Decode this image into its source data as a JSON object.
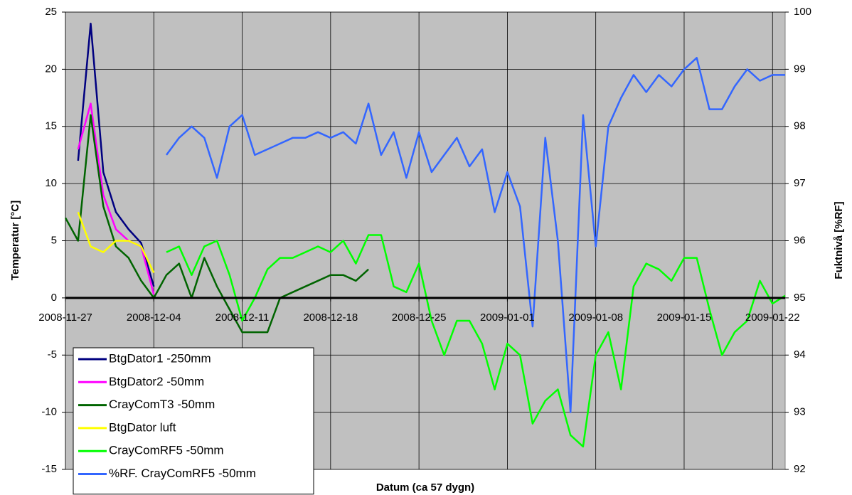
{
  "chart_data": {
    "type": "line",
    "x_label": "Datum (ca 57 dygn)",
    "y_label": "Temperatur [°C]",
    "y2_label": "Fuktnivå [%RF]",
    "x": [
      "2008-11-27",
      "2008-11-28",
      "2008-11-29",
      "2008-11-30",
      "2008-12-01",
      "2008-12-02",
      "2008-12-03",
      "2008-12-04",
      "2008-12-05",
      "2008-12-06",
      "2008-12-07",
      "2008-12-08",
      "2008-12-09",
      "2008-12-10",
      "2008-12-11",
      "2008-12-12",
      "2008-12-13",
      "2008-12-14",
      "2008-12-15",
      "2008-12-16",
      "2008-12-17",
      "2008-12-18",
      "2008-12-19",
      "2008-12-20",
      "2008-12-21",
      "2008-12-22",
      "2008-12-23",
      "2008-12-24",
      "2008-12-25",
      "2008-12-26",
      "2008-12-27",
      "2008-12-28",
      "2008-12-29",
      "2008-12-30",
      "2008-12-31",
      "2009-01-01",
      "2009-01-02",
      "2009-01-03",
      "2009-01-04",
      "2009-01-05",
      "2009-01-06",
      "2009-01-07",
      "2009-01-08",
      "2009-01-09",
      "2009-01-10",
      "2009-01-11",
      "2009-01-12",
      "2009-01-13",
      "2009-01-14",
      "2009-01-15",
      "2009-01-16",
      "2009-01-17",
      "2009-01-18",
      "2009-01-19",
      "2009-01-20",
      "2009-01-21",
      "2009-01-22",
      "2009-01-23"
    ],
    "xlim": [
      "2008-11-27",
      "2009-01-23"
    ],
    "xticks": [
      "2008-11-27",
      "2008-12-04",
      "2008-12-11",
      "2008-12-18",
      "2008-12-25",
      "2009-01-01",
      "2009-01-08",
      "2009-01-15",
      "2009-01-22"
    ],
    "ylim": [
      -15,
      25
    ],
    "yticks": [
      -15,
      -10,
      -5,
      0,
      5,
      10,
      15,
      20,
      25
    ],
    "y2lim": [
      92,
      100
    ],
    "y2ticks": [
      92,
      93,
      94,
      95,
      96,
      97,
      98,
      99,
      100
    ],
    "grid": true,
    "legend": "lower left",
    "series": [
      {
        "name": "BtgDator1 -250mm",
        "color": "#000080",
        "values": [
          null,
          12,
          24,
          11,
          7.5,
          6,
          4.8,
          1,
          null,
          null,
          null,
          null,
          null,
          null,
          null,
          null,
          null,
          null,
          null,
          null,
          null,
          null,
          null,
          null,
          null,
          null,
          null,
          null,
          null,
          null,
          null,
          null,
          null,
          null,
          null,
          null,
          null,
          null,
          null,
          null,
          null,
          null,
          null,
          null,
          null,
          null,
          null,
          null,
          null,
          null,
          null,
          null,
          null,
          null,
          null,
          null,
          null,
          null
        ]
      },
      {
        "name": "BtgDator2 -50mm",
        "color": "#ff00ff",
        "values": [
          null,
          13,
          17,
          9,
          6,
          5,
          4.5,
          0.3,
          null,
          null,
          null,
          null,
          null,
          null,
          null,
          null,
          null,
          null,
          null,
          null,
          null,
          null,
          null,
          null,
          null,
          null,
          null,
          null,
          null,
          null,
          null,
          null,
          null,
          null,
          null,
          null,
          null,
          null,
          null,
          null,
          null,
          null,
          null,
          null,
          null,
          null,
          null,
          null,
          null,
          null,
          null,
          null,
          null,
          null,
          null,
          null,
          null,
          null
        ]
      },
      {
        "name": "CrayComT3 -50mm",
        "color": "#006400",
        "values": [
          7,
          5,
          16,
          8,
          4.5,
          3.5,
          1.5,
          0,
          2,
          3,
          0,
          3.5,
          1,
          -1,
          -3,
          -3,
          -3,
          0,
          0.5,
          1,
          1.5,
          2,
          2,
          1.5,
          2.5,
          null,
          null,
          null,
          null,
          null,
          null,
          null,
          null,
          null,
          null,
          null,
          null,
          null,
          null,
          null,
          null,
          null,
          null,
          null,
          null,
          null,
          null,
          null,
          null,
          null,
          null,
          null,
          null,
          null,
          null,
          null,
          null,
          null
        ]
      },
      {
        "name": "BtgDator luft",
        "color": "#ffff00",
        "values": [
          null,
          7.5,
          4.5,
          4,
          5,
          5,
          4.5,
          2.2,
          null,
          null,
          null,
          null,
          null,
          null,
          null,
          null,
          null,
          null,
          null,
          null,
          null,
          null,
          null,
          null,
          null,
          null,
          null,
          null,
          null,
          null,
          null,
          null,
          null,
          null,
          null,
          null,
          null,
          null,
          null,
          null,
          null,
          null,
          null,
          null,
          null,
          null,
          null,
          null,
          null,
          null,
          null,
          null,
          null,
          null,
          null,
          null,
          null,
          null
        ]
      },
      {
        "name": "CrayComRF5 -50mm",
        "color": "#00ff00",
        "values": [
          null,
          null,
          null,
          null,
          null,
          null,
          null,
          null,
          4,
          4.5,
          2,
          4.5,
          5,
          2,
          -2,
          0,
          2.5,
          3.5,
          3.5,
          4,
          4.5,
          4,
          5,
          3,
          5.5,
          5.5,
          1,
          0.5,
          3,
          -2,
          -5,
          -2,
          -2,
          -4,
          -8,
          -4,
          -5,
          -11,
          -9,
          -8,
          -12,
          -13,
          -5,
          -3,
          -8,
          1,
          3,
          2.5,
          1.5,
          3.5,
          3.5,
          -1,
          -5,
          -3,
          -2,
          1.5,
          -0.5,
          0.2
        ]
      },
      {
        "name": "%RF. CrayComRF5 -50mm",
        "color": "#3366ff",
        "axis": "y2",
        "values": [
          null,
          null,
          null,
          null,
          null,
          null,
          null,
          null,
          97.5,
          97.8,
          98,
          97.8,
          97.1,
          98,
          98.2,
          97.5,
          97.6,
          97.7,
          97.8,
          97.8,
          97.9,
          97.8,
          97.9,
          97.7,
          98.4,
          97.5,
          97.9,
          97.1,
          97.9,
          97.2,
          97.5,
          97.8,
          97.3,
          97.6,
          96.5,
          97.2,
          96.6,
          94.5,
          97.8,
          96,
          93,
          98.2,
          95.9,
          98,
          98.5,
          98.9,
          98.6,
          98.9,
          98.7,
          99,
          99.2,
          98.3,
          98.3,
          98.7,
          99,
          98.8,
          98.9,
          98.9
        ]
      }
    ]
  }
}
